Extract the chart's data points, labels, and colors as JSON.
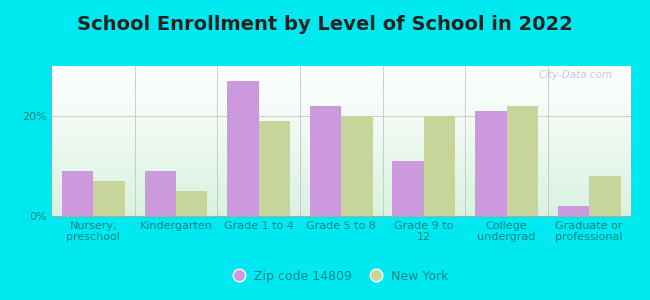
{
  "title": "School Enrollment by Level of School in 2022",
  "categories": [
    "Nursery,\npreschool",
    "Kindergarten",
    "Grade 1 to 4",
    "Grade 5 to 8",
    "Grade 9 to\n12",
    "College\nundergrad",
    "Graduate or\nprofessional"
  ],
  "zip_values": [
    9.0,
    9.0,
    27.0,
    22.0,
    11.0,
    21.0,
    2.0
  ],
  "ny_values": [
    7.0,
    5.0,
    19.0,
    20.0,
    20.0,
    22.0,
    8.0
  ],
  "zip_color": "#cc99dd",
  "ny_color": "#c8d59a",
  "background_outer": "#00e8f0",
  "zip_label": "Zip code 14809",
  "ny_label": "New York",
  "ylim": [
    0,
    30
  ],
  "yticks": [
    0,
    20
  ],
  "ytick_labels": [
    "0%",
    "20%"
  ],
  "bar_width": 0.38,
  "title_fontsize": 14,
  "axis_fontsize": 8,
  "legend_fontsize": 9,
  "watermark_text": "City-Data.com",
  "title_color": "#222222",
  "tick_label_color": "#008888",
  "legend_text_color": "#008888",
  "grid_line_color": "#ddcccc",
  "separator_color": "#bbbbbb"
}
